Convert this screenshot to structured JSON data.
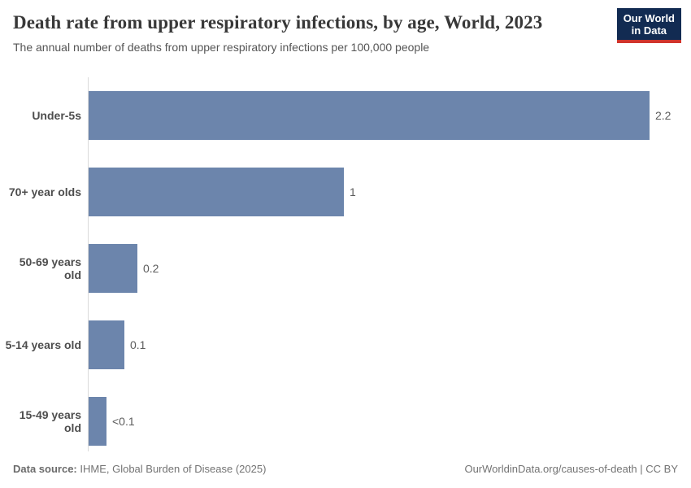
{
  "header": {
    "title": "Death rate from upper respiratory infections, by age, World, 2023",
    "subtitle": "The annual number of deaths from upper respiratory infections per 100,000 people"
  },
  "logo": {
    "line1": "Our World",
    "line2": "in Data",
    "bg_color": "#122b52",
    "accent_color": "#d0342c"
  },
  "chart_data": {
    "type": "bar",
    "orientation": "horizontal",
    "title": "Death rate from upper respiratory infections, by age, World, 2023",
    "subtitle": "The annual number of deaths from upper respiratory infections per 100,000 people",
    "unit": "deaths per 100,000 people",
    "categories": [
      "Under-5s",
      "70+ year olds",
      "50-69 years old",
      "5-14 years old",
      "15-49 years old"
    ],
    "values": [
      2.2,
      1.0,
      0.19,
      0.14,
      0.07
    ],
    "value_labels": [
      "2.2",
      "1",
      "0.2",
      "0.1",
      "<0.1"
    ],
    "bar_color": "#6c85ac",
    "xlim": [
      0,
      2.35
    ],
    "grid": false,
    "legend": "none"
  },
  "footer": {
    "source_label": "Data source:",
    "source_text": " IHME, Global Burden of Disease (2025)",
    "credit": "OurWorldinData.org/causes-of-death | CC BY"
  }
}
